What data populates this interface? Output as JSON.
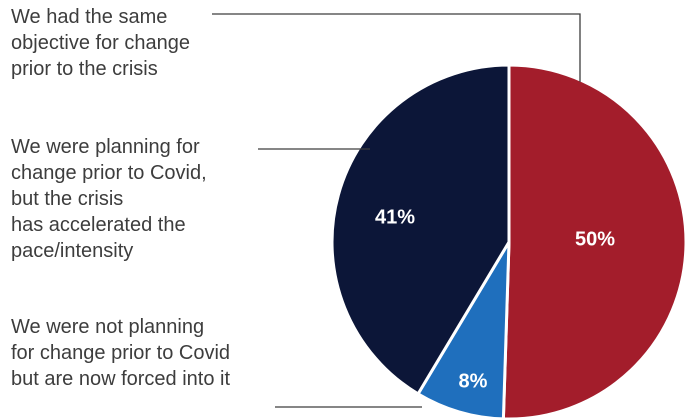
{
  "chart_data": {
    "type": "pie",
    "slices": [
      {
        "label_lines": [
          "We had the same",
          "objective for change",
          "prior to the crisis"
        ],
        "value": 50,
        "value_label": "50%",
        "color": "#a31d2b"
      },
      {
        "label_lines": [
          "We were not planning",
          "for change prior to Covid",
          "but are now forced into it"
        ],
        "value": 8,
        "value_label": "8%",
        "color": "#1f6fbd"
      },
      {
        "label_lines": [
          "We were planning for",
          "change prior to Covid,",
          "but the crisis",
          "has accelerated the",
          "pace/intensity"
        ],
        "value": 41,
        "value_label": "41%",
        "color": "#0c1638"
      }
    ],
    "legend_placement": "left",
    "value_label_color": "#ffffff",
    "leader_color": "#3d3d3d"
  }
}
